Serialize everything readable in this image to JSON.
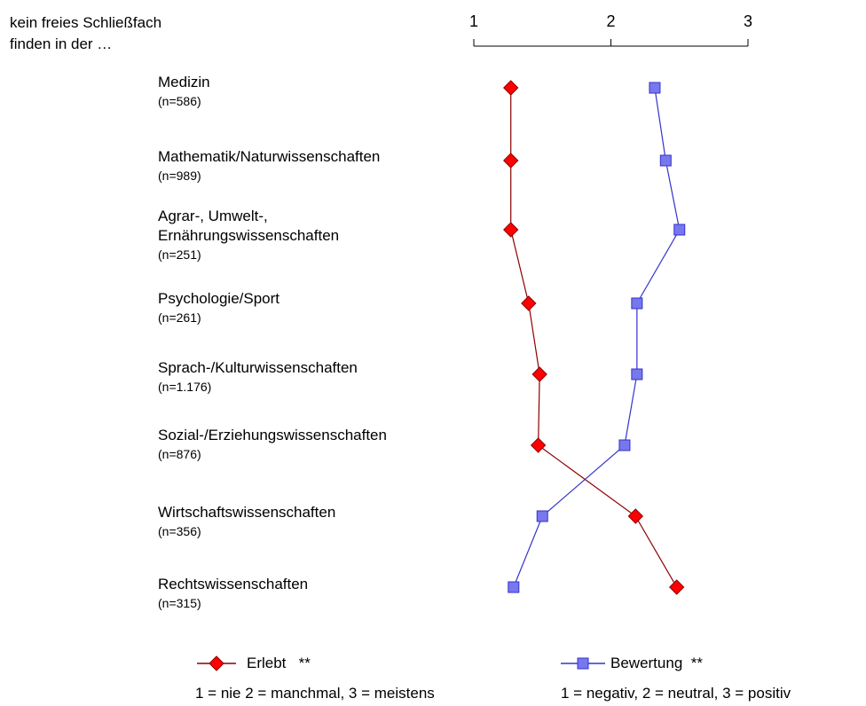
{
  "title_lines": [
    "kein freies Schließfach",
    "finden in der …"
  ],
  "chart_data": {
    "type": "line",
    "orientation": "horizontal",
    "x_axis": {
      "range": [
        1,
        3
      ],
      "ticks": [
        "1",
        "2",
        "3"
      ],
      "position": "top"
    },
    "categories": [
      {
        "label": "Medizin",
        "n": "(n=586)"
      },
      {
        "label": "Mathematik/Naturwissenschaften",
        "n": "(n=989)"
      },
      {
        "label": "Agrar-, Umwelt-,\nErnährungswissenschaften",
        "n": "(n=251)"
      },
      {
        "label": "Psychologie/Sport",
        "n": "(n=261)"
      },
      {
        "label": "Sprach-/Kulturwissenschaften",
        "n": "(n=1.176)"
      },
      {
        "label": "Sozial-/Erziehungswissenschaften",
        "n": "(n=876)"
      },
      {
        "label": "Wirtschaftswissenschaften",
        "n": "(n=356)"
      },
      {
        "label": "Rechtswissenschaften",
        "n": "(n=315)"
      }
    ],
    "series": [
      {
        "name": "Erlebt",
        "marker": "diamond",
        "color": "#8b0000",
        "fill": "#ff0000",
        "values": [
          1.27,
          1.27,
          1.27,
          1.4,
          1.48,
          1.47,
          2.18,
          2.48
        ]
      },
      {
        "name": "Bewertung",
        "marker": "square",
        "color": "#3333cc",
        "fill": "#7777ee",
        "values": [
          2.32,
          2.4,
          2.5,
          2.19,
          2.19,
          2.1,
          1.5,
          1.29
        ]
      }
    ],
    "legend": [
      {
        "name": "Erlebt",
        "suffix": "**",
        "note": "1 = nie 2 = manchmal, 3 = meistens"
      },
      {
        "name": "Bewertung",
        "suffix": "**",
        "note": "1 = negativ, 2 = neutral, 3 = positiv"
      }
    ],
    "grid": false,
    "legend_position": "bottom"
  }
}
